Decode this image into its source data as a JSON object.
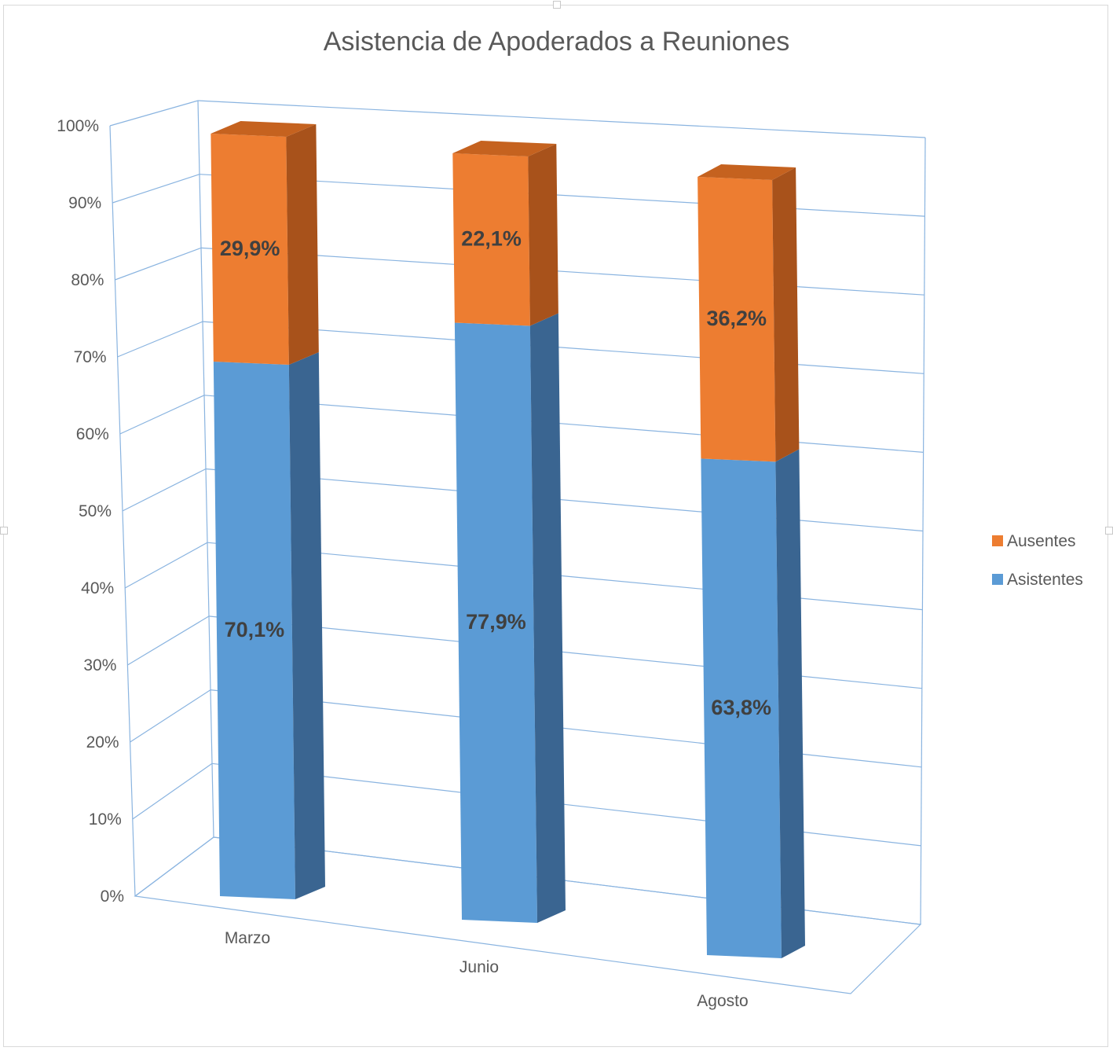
{
  "chart_data": {
    "type": "bar",
    "stacked": true,
    "percent_stacked": true,
    "three_d": true,
    "title": "Asistencia de Apoderados a Reuniones",
    "categories": [
      "Marzo",
      "Junio",
      "Agosto"
    ],
    "series": [
      {
        "name": "Asistentes",
        "values": [
          70.1,
          77.9,
          63.8
        ],
        "labels": [
          "70,1%",
          "77,9%",
          "63,8%"
        ],
        "color": "#5b9bd5",
        "side_color": "#3a6591",
        "top_color": "#4f8cc4"
      },
      {
        "name": "Ausentes",
        "values": [
          29.9,
          22.1,
          36.2
        ],
        "labels": [
          "29,9%",
          "22,1%",
          "36,2%"
        ],
        "color": "#ed7d31",
        "side_color": "#a8521b",
        "top_color": "#c5621f"
      }
    ],
    "yaxis": {
      "ticks": [
        "0%",
        "10%",
        "20%",
        "30%",
        "40%",
        "50%",
        "60%",
        "70%",
        "80%",
        "90%",
        "100%"
      ],
      "ylim": [
        0,
        100
      ]
    },
    "grid": true,
    "gridline_color": "#8ab4e0",
    "legend": {
      "position": "right",
      "entries": [
        "Ausentes",
        "Asistentes"
      ]
    }
  }
}
